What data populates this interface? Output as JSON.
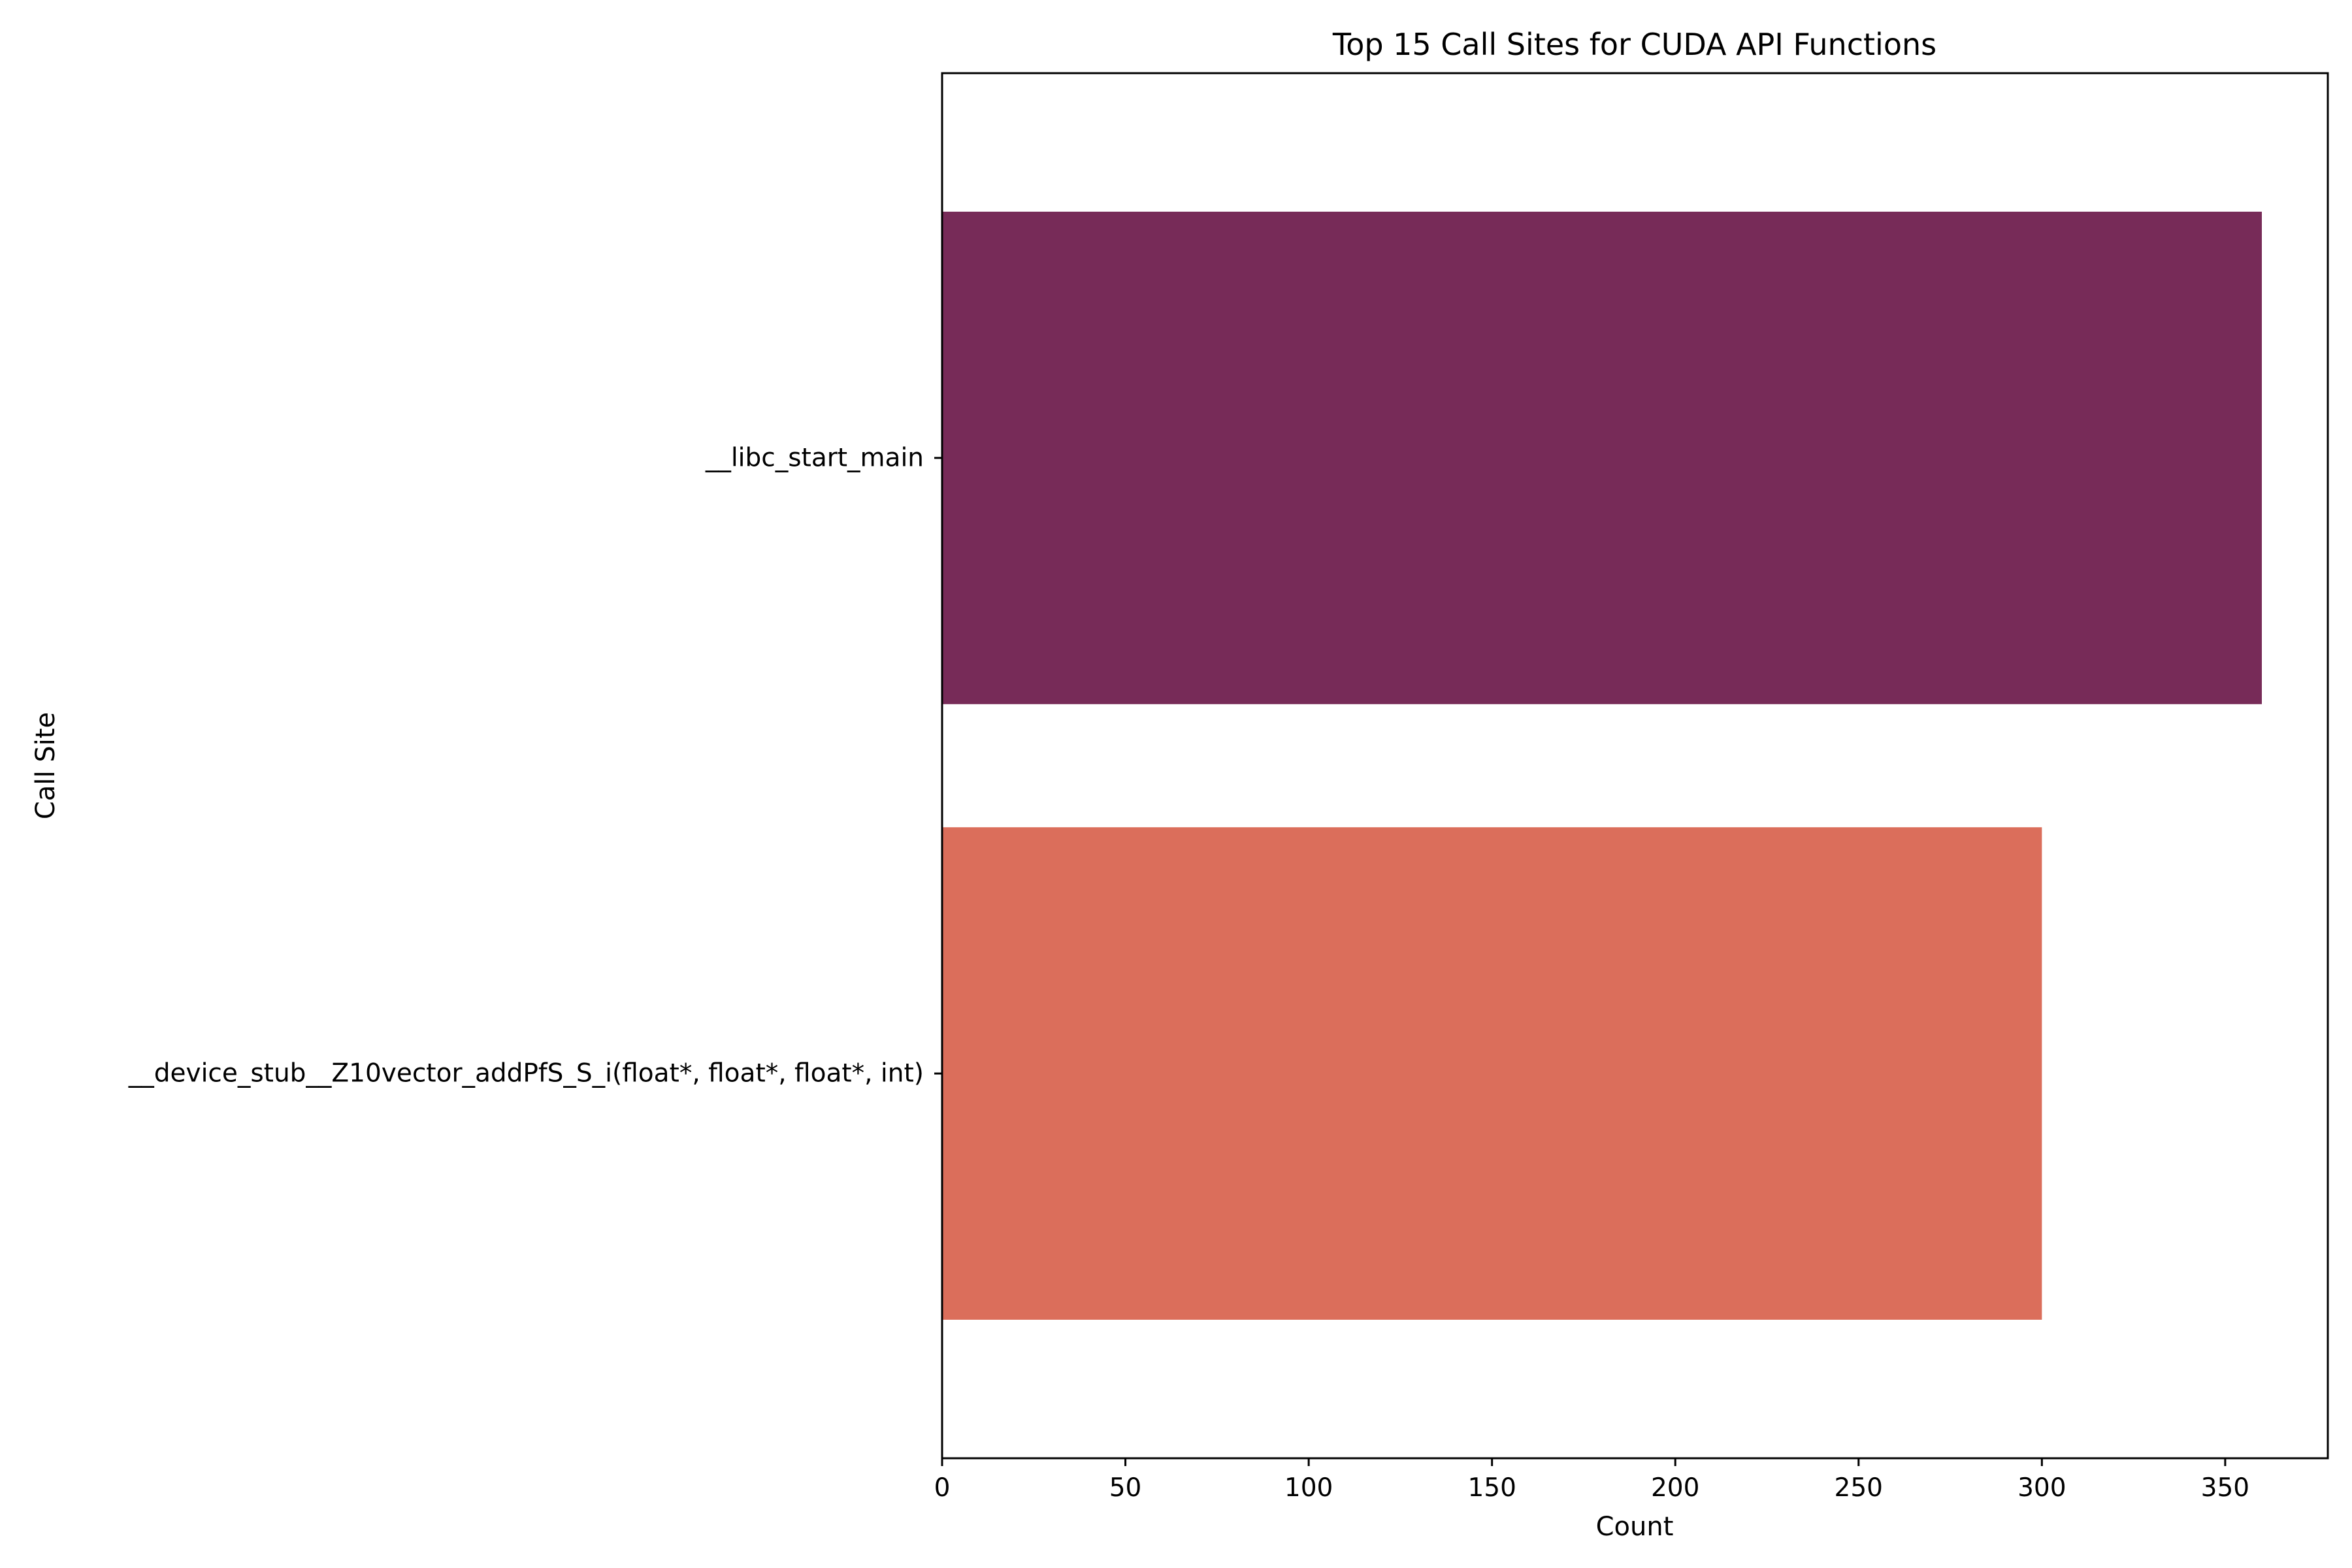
{
  "chart_data": {
    "type": "bar",
    "orientation": "horizontal",
    "title": "Top 15 Call Sites for CUDA API Functions",
    "xlabel": "Count",
    "ylabel": "Call Site",
    "categories": [
      "__libc_start_main",
      "__device_stub__Z10vector_addPfS_S_i(float*, float*, float*, int)"
    ],
    "values": [
      360,
      300
    ],
    "colors": [
      "#772b58",
      "#db6e5b"
    ],
    "xlim": [
      0,
      378
    ],
    "xticks": [
      0,
      50,
      100,
      150,
      200,
      250,
      300,
      350
    ],
    "grid": false,
    "legend": "none"
  }
}
